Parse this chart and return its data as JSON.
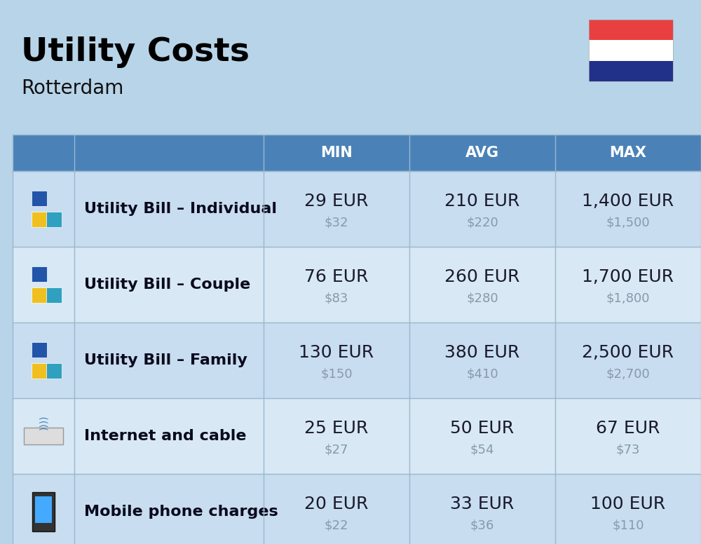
{
  "title": "Utility Costs",
  "subtitle": "Rotterdam",
  "background_color": "#b8d4e8",
  "header_bg_color": "#4a82b8",
  "header_text_color": "#ffffff",
  "row_bg_even": "#c8ddef",
  "row_bg_odd": "#d8e8f4",
  "grid_color": "#9ab8d0",
  "col_headers": [
    "MIN",
    "AVG",
    "MAX"
  ],
  "rows": [
    {
      "label": "Utility Bill – Individual",
      "min_eur": "29 EUR",
      "min_usd": "$32",
      "avg_eur": "210 EUR",
      "avg_usd": "$220",
      "max_eur": "1,400 EUR",
      "max_usd": "$1,500"
    },
    {
      "label": "Utility Bill – Couple",
      "min_eur": "76 EUR",
      "min_usd": "$83",
      "avg_eur": "260 EUR",
      "avg_usd": "$280",
      "max_eur": "1,700 EUR",
      "max_usd": "$1,800"
    },
    {
      "label": "Utility Bill – Family",
      "min_eur": "130 EUR",
      "min_usd": "$150",
      "avg_eur": "380 EUR",
      "avg_usd": "$410",
      "max_eur": "2,500 EUR",
      "max_usd": "$2,700"
    },
    {
      "label": "Internet and cable",
      "min_eur": "25 EUR",
      "min_usd": "$27",
      "avg_eur": "50 EUR",
      "avg_usd": "$54",
      "max_eur": "67 EUR",
      "max_usd": "$73"
    },
    {
      "label": "Mobile phone charges",
      "min_eur": "20 EUR",
      "min_usd": "$22",
      "avg_eur": "33 EUR",
      "avg_usd": "$36",
      "max_eur": "100 EUR",
      "max_usd": "$110"
    }
  ],
  "flag_colors": [
    "#e84040",
    "#ffffff",
    "#21318a"
  ],
  "title_fontsize": 34,
  "subtitle_fontsize": 20,
  "header_fontsize": 15,
  "label_fontsize": 16,
  "eur_fontsize": 18,
  "usd_fontsize": 13,
  "eur_color": "#1a1a2e",
  "usd_color": "#8899aa",
  "label_color": "#0a0a1e"
}
